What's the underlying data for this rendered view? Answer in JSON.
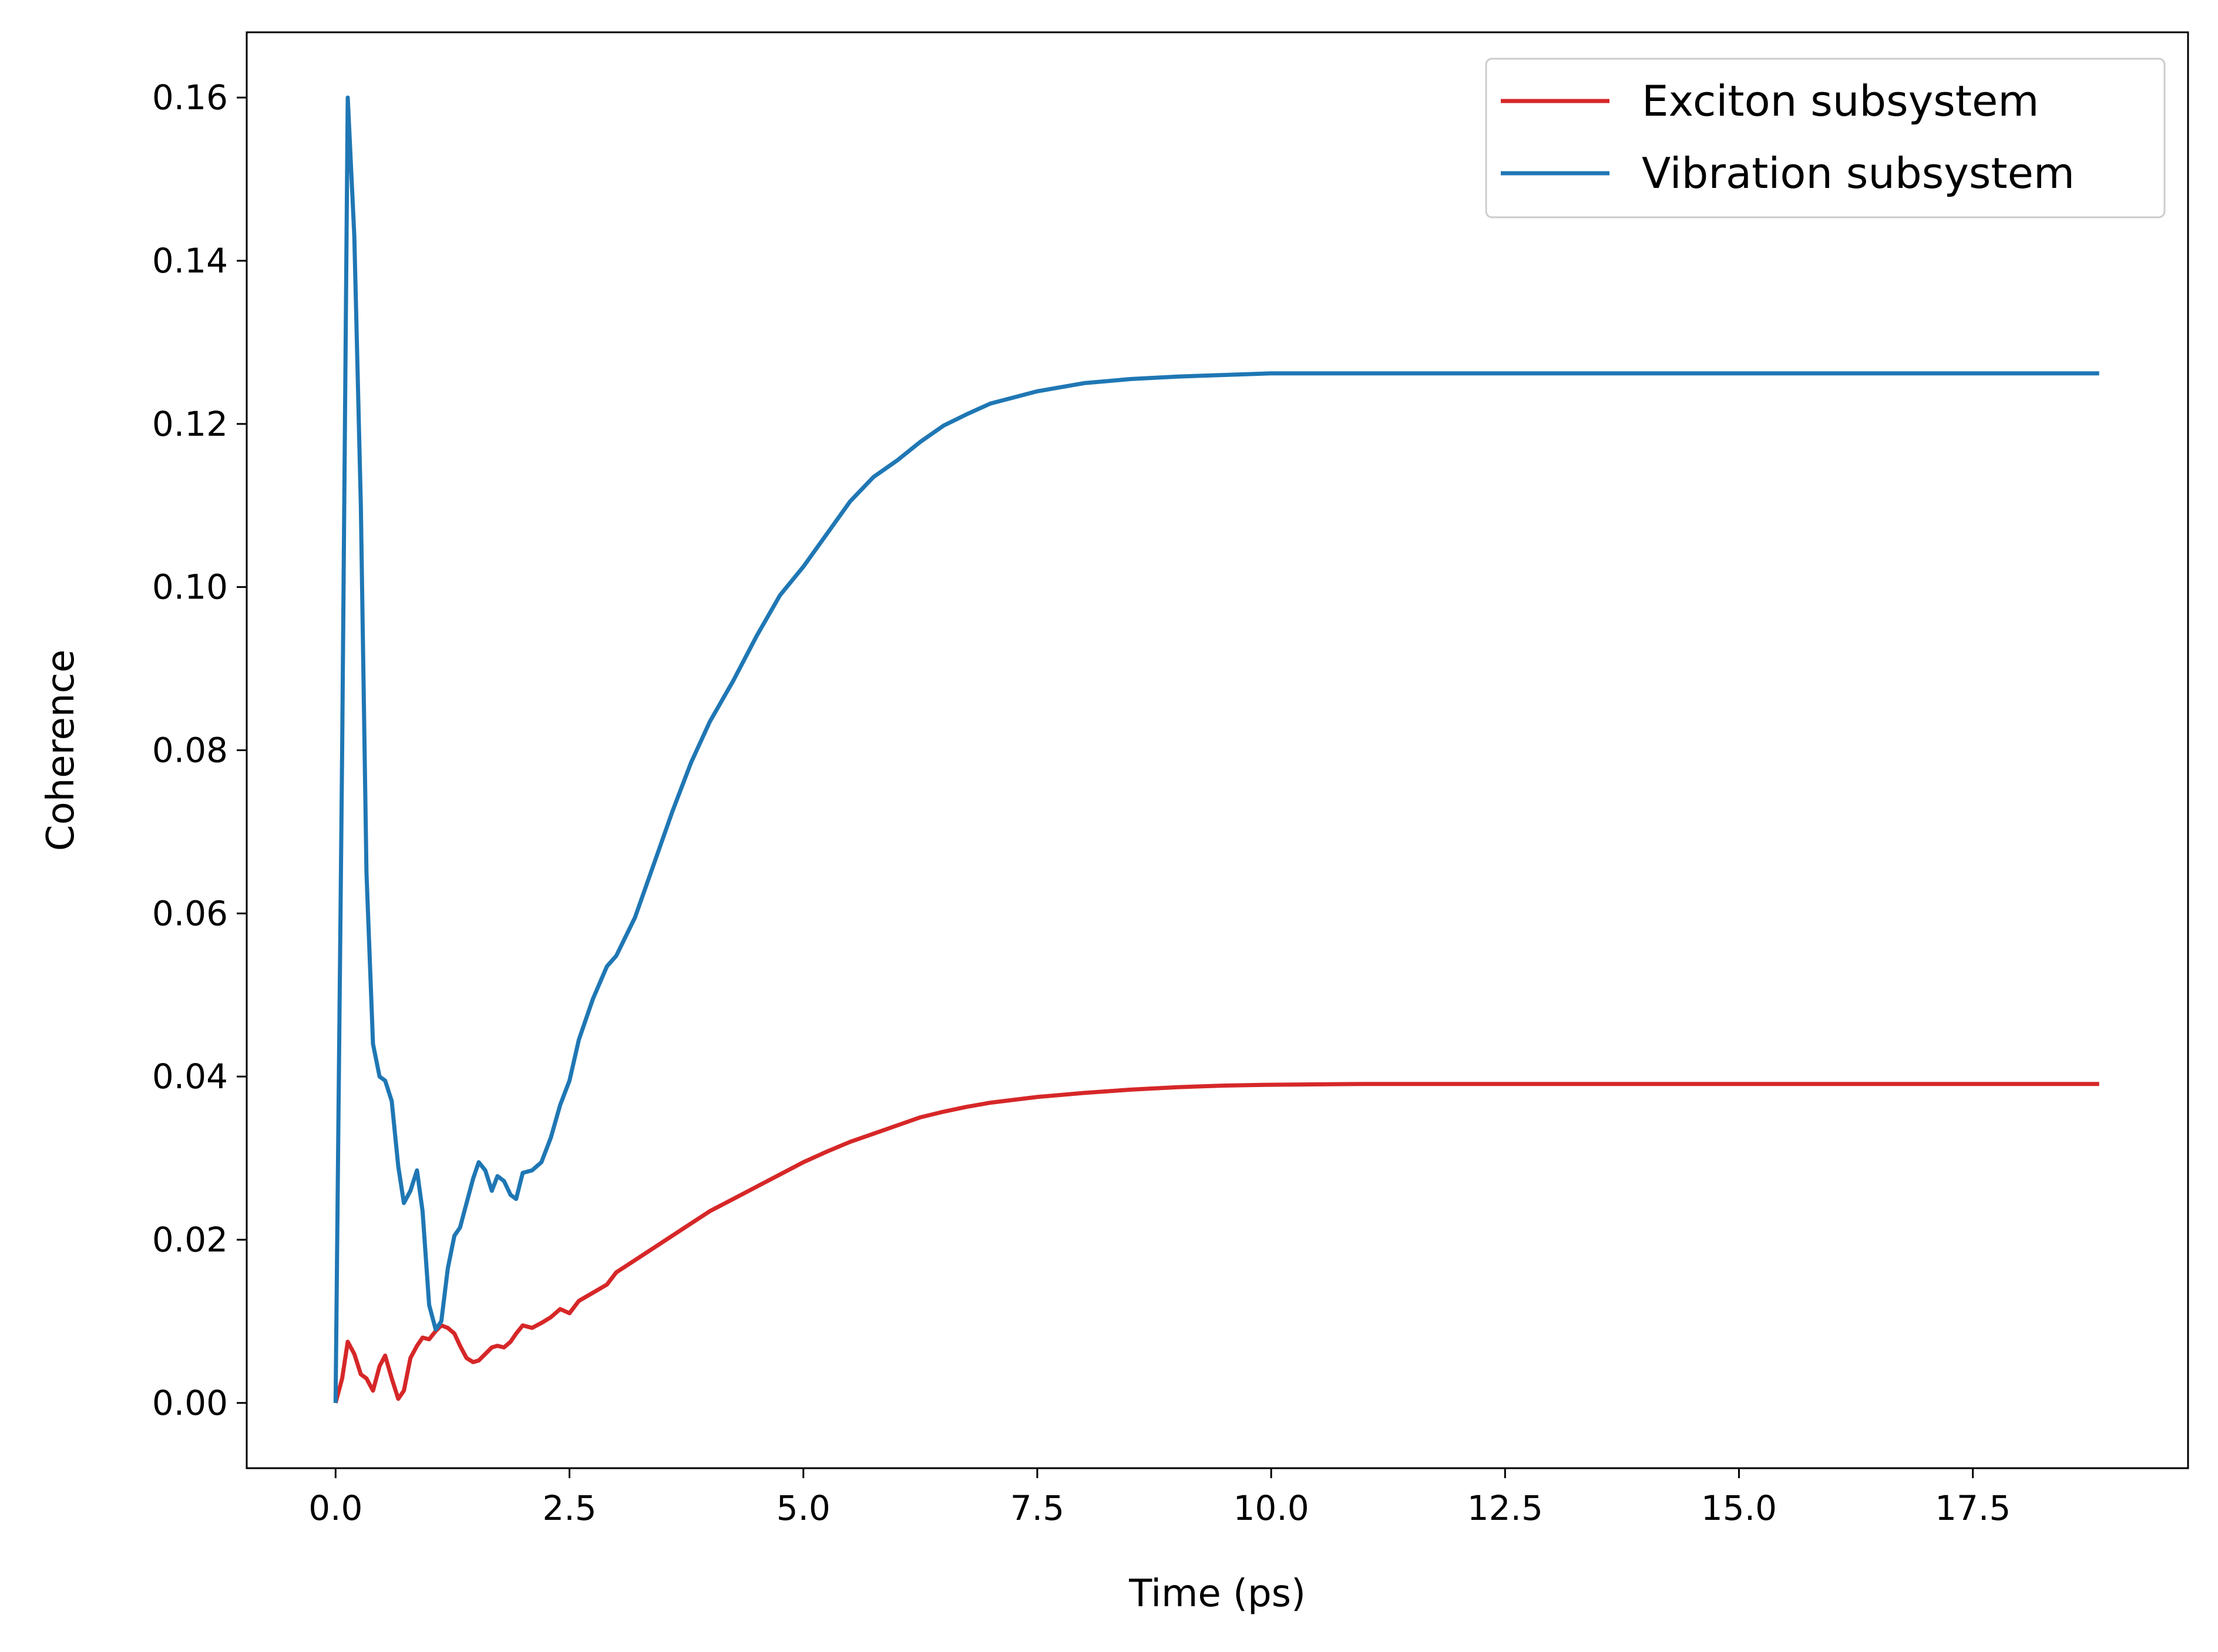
{
  "chart_data": {
    "type": "line",
    "title": "",
    "xlabel": "Time (ps)",
    "ylabel": "Coherence",
    "xlim": [
      -0.95,
      19.8
    ],
    "ylim": [
      -0.008,
      0.168
    ],
    "xticks": [
      0.0,
      2.5,
      5.0,
      7.5,
      10.0,
      12.5,
      15.0,
      17.5
    ],
    "xtick_labels": [
      "0.0",
      "2.5",
      "5.0",
      "7.5",
      "10.0",
      "12.5",
      "15.0",
      "17.5"
    ],
    "yticks": [
      0.0,
      0.02,
      0.04,
      0.06,
      0.08,
      0.1,
      0.12,
      0.14,
      0.16
    ],
    "ytick_labels": [
      "0.00",
      "0.02",
      "0.04",
      "0.06",
      "0.08",
      "0.10",
      "0.12",
      "0.14",
      "0.16"
    ],
    "grid": false,
    "legend_position": "top-right",
    "series": [
      {
        "name": "Exciton subsystem",
        "color": "#d62728",
        "points": [
          [
            0.0,
            0.0
          ],
          [
            0.07,
            0.003
          ],
          [
            0.13,
            0.0075
          ],
          [
            0.2,
            0.006
          ],
          [
            0.27,
            0.0035
          ],
          [
            0.33,
            0.003
          ],
          [
            0.4,
            0.0015
          ],
          [
            0.47,
            0.0045
          ],
          [
            0.53,
            0.0058
          ],
          [
            0.6,
            0.003
          ],
          [
            0.67,
            0.0005
          ],
          [
            0.73,
            0.0015
          ],
          [
            0.8,
            0.0055
          ],
          [
            0.87,
            0.007
          ],
          [
            0.93,
            0.008
          ],
          [
            1.0,
            0.0078
          ],
          [
            1.07,
            0.0088
          ],
          [
            1.13,
            0.0095
          ],
          [
            1.2,
            0.0092
          ],
          [
            1.27,
            0.0085
          ],
          [
            1.33,
            0.007
          ],
          [
            1.4,
            0.0055
          ],
          [
            1.47,
            0.005
          ],
          [
            1.53,
            0.0052
          ],
          [
            1.6,
            0.006
          ],
          [
            1.67,
            0.0068
          ],
          [
            1.73,
            0.007
          ],
          [
            1.8,
            0.0068
          ],
          [
            1.87,
            0.0075
          ],
          [
            1.93,
            0.0085
          ],
          [
            2.0,
            0.0095
          ],
          [
            2.1,
            0.0092
          ],
          [
            2.2,
            0.0098
          ],
          [
            2.3,
            0.0105
          ],
          [
            2.4,
            0.0115
          ],
          [
            2.5,
            0.011
          ],
          [
            2.6,
            0.0125
          ],
          [
            2.75,
            0.0135
          ],
          [
            2.9,
            0.0145
          ],
          [
            3.0,
            0.016
          ],
          [
            3.2,
            0.0175
          ],
          [
            3.4,
            0.019
          ],
          [
            3.6,
            0.0205
          ],
          [
            3.8,
            0.022
          ],
          [
            4.0,
            0.0235
          ],
          [
            4.25,
            0.025
          ],
          [
            4.5,
            0.0265
          ],
          [
            4.75,
            0.028
          ],
          [
            5.0,
            0.0295
          ],
          [
            5.25,
            0.0308
          ],
          [
            5.5,
            0.032
          ],
          [
            5.75,
            0.033
          ],
          [
            6.0,
            0.034
          ],
          [
            6.25,
            0.035
          ],
          [
            6.5,
            0.0357
          ],
          [
            6.75,
            0.0363
          ],
          [
            7.0,
            0.0368
          ],
          [
            7.5,
            0.0375
          ],
          [
            8.0,
            0.038
          ],
          [
            8.5,
            0.0384
          ],
          [
            9.0,
            0.0387
          ],
          [
            9.5,
            0.0389
          ],
          [
            10.0,
            0.039
          ],
          [
            11.0,
            0.0391
          ],
          [
            12.0,
            0.0391
          ],
          [
            14.0,
            0.0391
          ],
          [
            16.0,
            0.0391
          ],
          [
            18.0,
            0.0391
          ],
          [
            18.85,
            0.0391
          ]
        ]
      },
      {
        "name": "Vibration subsystem",
        "color": "#1f77b4",
        "points": [
          [
            0.0,
            0.0
          ],
          [
            0.07,
            0.08
          ],
          [
            0.13,
            0.16
          ],
          [
            0.2,
            0.143
          ],
          [
            0.27,
            0.11
          ],
          [
            0.33,
            0.065
          ],
          [
            0.4,
            0.044
          ],
          [
            0.47,
            0.04
          ],
          [
            0.53,
            0.0395
          ],
          [
            0.6,
            0.037
          ],
          [
            0.67,
            0.029
          ],
          [
            0.73,
            0.0245
          ],
          [
            0.8,
            0.026
          ],
          [
            0.87,
            0.0285
          ],
          [
            0.93,
            0.0235
          ],
          [
            1.0,
            0.012
          ],
          [
            1.07,
            0.009
          ],
          [
            1.13,
            0.01
          ],
          [
            1.2,
            0.0165
          ],
          [
            1.27,
            0.0205
          ],
          [
            1.33,
            0.0215
          ],
          [
            1.4,
            0.0245
          ],
          [
            1.47,
            0.0275
          ],
          [
            1.53,
            0.0295
          ],
          [
            1.6,
            0.0285
          ],
          [
            1.67,
            0.026
          ],
          [
            1.73,
            0.0278
          ],
          [
            1.8,
            0.0272
          ],
          [
            1.87,
            0.0255
          ],
          [
            1.93,
            0.025
          ],
          [
            2.0,
            0.0282
          ],
          [
            2.1,
            0.0285
          ],
          [
            2.2,
            0.0295
          ],
          [
            2.3,
            0.0325
          ],
          [
            2.4,
            0.0365
          ],
          [
            2.5,
            0.0395
          ],
          [
            2.6,
            0.0445
          ],
          [
            2.75,
            0.0495
          ],
          [
            2.9,
            0.0535
          ],
          [
            3.0,
            0.0548
          ],
          [
            3.2,
            0.0595
          ],
          [
            3.4,
            0.066
          ],
          [
            3.6,
            0.0725
          ],
          [
            3.8,
            0.0785
          ],
          [
            4.0,
            0.0835
          ],
          [
            4.25,
            0.0885
          ],
          [
            4.5,
            0.094
          ],
          [
            4.75,
            0.099
          ],
          [
            5.0,
            0.1025
          ],
          [
            5.25,
            0.1065
          ],
          [
            5.5,
            0.1105
          ],
          [
            5.75,
            0.1135
          ],
          [
            6.0,
            0.1155
          ],
          [
            6.25,
            0.1178
          ],
          [
            6.5,
            0.1198
          ],
          [
            6.75,
            0.1212
          ],
          [
            7.0,
            0.1225
          ],
          [
            7.5,
            0.124
          ],
          [
            8.0,
            0.125
          ],
          [
            8.5,
            0.1255
          ],
          [
            9.0,
            0.1258
          ],
          [
            9.5,
            0.126
          ],
          [
            10.0,
            0.1262
          ],
          [
            11.0,
            0.1262
          ],
          [
            12.0,
            0.1262
          ],
          [
            14.0,
            0.1262
          ],
          [
            16.0,
            0.1262
          ],
          [
            18.0,
            0.1262
          ],
          [
            18.85,
            0.1262
          ]
        ]
      }
    ]
  }
}
